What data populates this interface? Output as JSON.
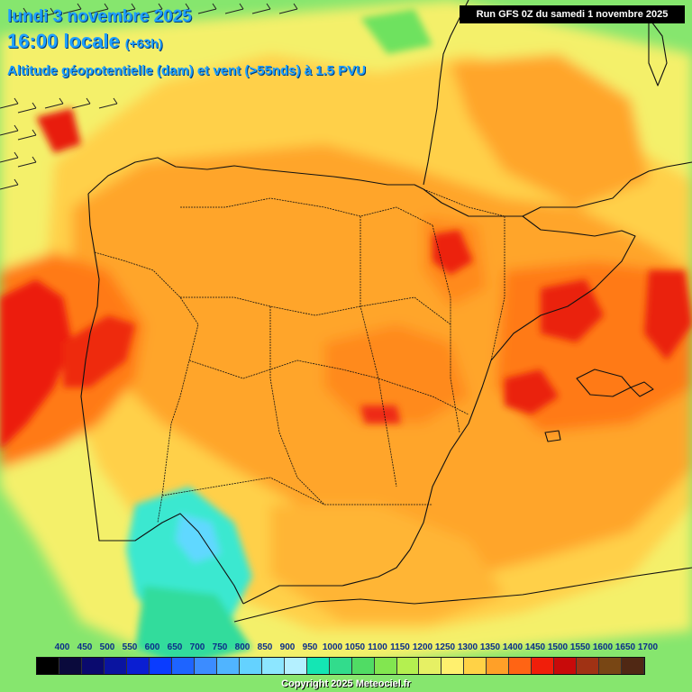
{
  "header": {
    "date_line": "lundi 3 novembre 2025",
    "time_line": "16:00 locale",
    "lead_time": "(+63h)",
    "field_line": "Altitude géopotentielle (dam) et vent (>55nds) à 1.5 PVU",
    "run_info": "Run GFS 0Z du samedi 1 novembre 2025"
  },
  "scale": {
    "labels": [
      "400",
      "450",
      "500",
      "550",
      "600",
      "650",
      "700",
      "750",
      "800",
      "850",
      "900",
      "950",
      "1000",
      "1050",
      "1100",
      "1150",
      "1200",
      "1250",
      "1300",
      "1350",
      "1400",
      "1450",
      "1500",
      "1550",
      "1600",
      "1650",
      "1700"
    ],
    "colors": [
      "#000000",
      "#0a0a3c",
      "#0a0a6e",
      "#0a14a0",
      "#0a1ed2",
      "#0a3cff",
      "#1e64ff",
      "#3c8cff",
      "#50b4ff",
      "#64d2ff",
      "#8ce6ff",
      "#b4f0ff",
      "#14e6b4",
      "#32dc8c",
      "#50dc64",
      "#82e650",
      "#b4f050",
      "#e6f064",
      "#fff06e",
      "#ffd246",
      "#ffa028",
      "#ff6414",
      "#f01e0a",
      "#c80a0a",
      "#a03214",
      "#784614",
      "#502814"
    ]
  },
  "copyright": "Copyright 2025 Meteociel.fr",
  "map": {
    "region": "Iberian Peninsula",
    "background_color": "#7fe37a",
    "wind_barbs": "upper-left corner"
  }
}
